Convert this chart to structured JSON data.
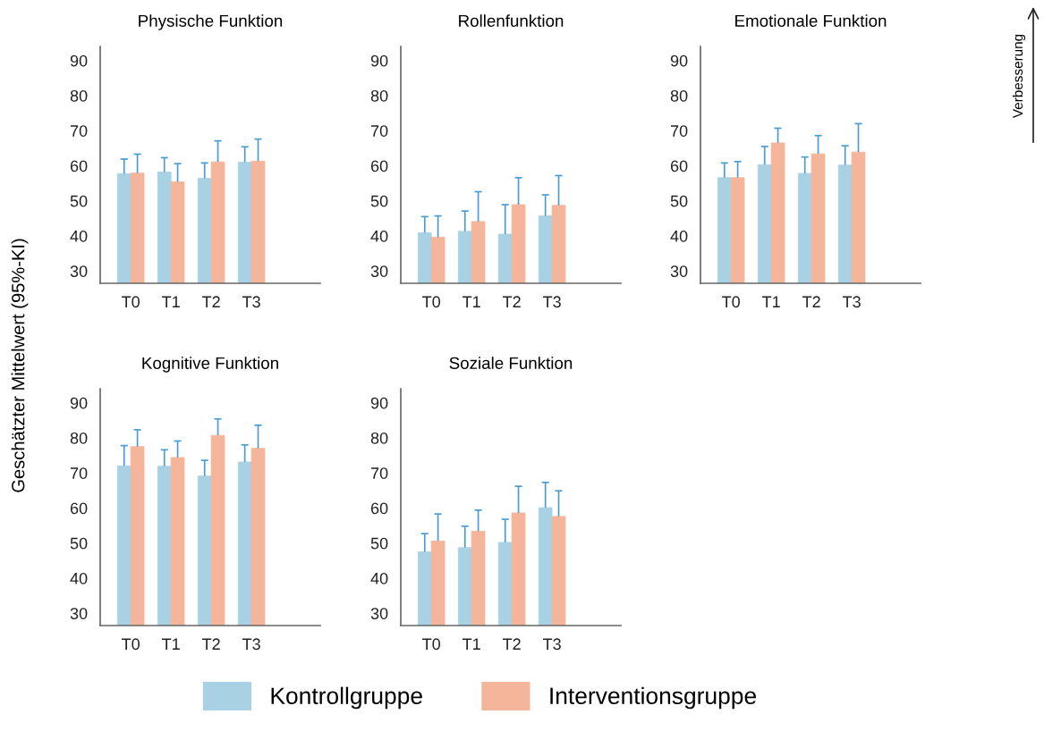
{
  "chart_data": [
    {
      "type": "bar",
      "title": "Physische Funktion",
      "ylabel": "Geschätzter Mittelwert (95%-KI)",
      "categories": [
        "T0",
        "T1",
        "T2",
        "T3"
      ],
      "ylim": [
        26.5,
        94
      ],
      "yticks": [
        30,
        40,
        50,
        60,
        70,
        80,
        90
      ],
      "legend": "bottom",
      "series": [
        {
          "name": "Kontrollgruppe",
          "color": "#a9d1e4",
          "values": [
            57.7,
            58.2,
            56.4,
            61.0
          ],
          "errors": [
            [
              57.7,
              61.9
            ],
            [
              58.2,
              62.3
            ],
            [
              56.4,
              60.8
            ],
            [
              61.0,
              65.4
            ]
          ]
        },
        {
          "name": "Interventionsgruppe",
          "color": "#f5b59a",
          "values": [
            57.9,
            55.4,
            61.1,
            61.3
          ],
          "errors": [
            [
              57.9,
              63.3
            ],
            [
              55.4,
              60.6
            ],
            [
              61.1,
              67.1
            ],
            [
              61.3,
              67.6
            ]
          ]
        }
      ]
    },
    {
      "type": "bar",
      "title": "Rollenfunktion",
      "categories": [
        "T0",
        "T1",
        "T2",
        "T3"
      ],
      "ylim": [
        26.5,
        94
      ],
      "yticks": [
        30,
        40,
        50,
        60,
        70,
        80,
        90
      ],
      "series": [
        {
          "color": "#a9d1e4",
          "values": [
            40.9,
            41.3,
            40.5,
            45.7
          ],
          "errors": [
            [
              40.9,
              45.5
            ],
            [
              41.3,
              47.1
            ],
            [
              40.5,
              48.9
            ],
            [
              45.7,
              51.7
            ]
          ]
        },
        {
          "color": "#f5b59a",
          "values": [
            39.6,
            44.1,
            48.9,
            48.7
          ],
          "errors": [
            [
              39.6,
              45.7
            ],
            [
              44.1,
              52.6
            ],
            [
              48.9,
              56.6
            ],
            [
              48.7,
              57.2
            ]
          ]
        }
      ]
    },
    {
      "type": "bar",
      "title": "Emotionale Funktion",
      "categories": [
        "T0",
        "T1",
        "T2",
        "T3"
      ],
      "ylim": [
        26.5,
        94
      ],
      "yticks": [
        30,
        40,
        50,
        60,
        70,
        80,
        90
      ],
      "annotations": [
        "Verbesserung"
      ],
      "series": [
        {
          "color": "#a9d1e4",
          "values": [
            56.6,
            60.3,
            57.8,
            60.2
          ],
          "errors": [
            [
              56.6,
              60.8
            ],
            [
              60.3,
              65.5
            ],
            [
              57.8,
              62.5
            ],
            [
              60.2,
              65.7
            ]
          ]
        },
        {
          "color": "#f5b59a",
          "values": [
            56.6,
            66.5,
            63.4,
            63.9
          ],
          "errors": [
            [
              56.6,
              61.2
            ],
            [
              66.5,
              70.7
            ],
            [
              63.4,
              68.6
            ],
            [
              63.9,
              72.0
            ]
          ]
        }
      ]
    },
    {
      "type": "bar",
      "title": "Kognitive Funktion",
      "categories": [
        "T0",
        "T1",
        "T2",
        "T3"
      ],
      "ylim": [
        26.5,
        94
      ],
      "yticks": [
        30,
        40,
        50,
        60,
        70,
        80,
        90
      ],
      "series": [
        {
          "color": "#a9d1e4",
          "values": [
            72.0,
            71.9,
            69.1,
            73.1
          ],
          "errors": [
            [
              72.0,
              77.8
            ],
            [
              71.9,
              76.6
            ],
            [
              69.1,
              73.6
            ],
            [
              73.1,
              78.0
            ]
          ]
        },
        {
          "color": "#f5b59a",
          "values": [
            77.5,
            74.4,
            80.7,
            77.0
          ],
          "errors": [
            [
              77.5,
              82.3
            ],
            [
              74.4,
              79.1
            ],
            [
              80.7,
              85.4
            ],
            [
              77.0,
              83.6
            ]
          ]
        }
      ]
    },
    {
      "type": "bar",
      "title": "Soziale Funktion",
      "categories": [
        "T0",
        "T1",
        "T2",
        "T3"
      ],
      "ylim": [
        26.5,
        94
      ],
      "yticks": [
        30,
        40,
        50,
        60,
        70,
        80,
        90
      ],
      "series": [
        {
          "color": "#a9d1e4",
          "values": [
            47.5,
            48.7,
            50.2,
            60.1
          ],
          "errors": [
            [
              47.5,
              52.7
            ],
            [
              48.7,
              54.8
            ],
            [
              50.2,
              56.8
            ],
            [
              60.1,
              67.3
            ]
          ]
        },
        {
          "color": "#f5b59a",
          "values": [
            50.6,
            53.4,
            58.6,
            57.6
          ],
          "errors": [
            [
              50.6,
              58.3
            ],
            [
              53.4,
              59.4
            ],
            [
              58.6,
              66.2
            ],
            [
              57.6,
              64.9
            ]
          ]
        }
      ]
    }
  ]
}
